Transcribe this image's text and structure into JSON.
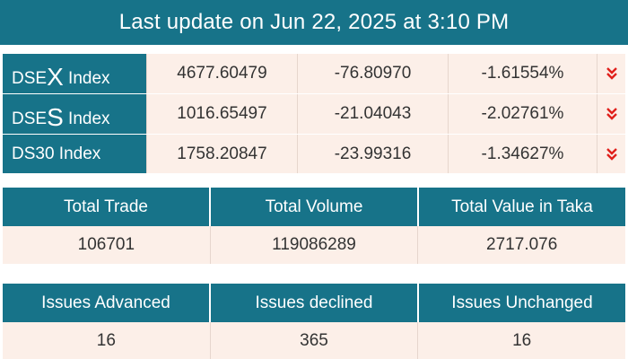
{
  "header": {
    "title": "Last update on Jun 22, 2025 at 3:10 PM"
  },
  "indices": [
    {
      "prefix": "DSE",
      "big": "X",
      "suffix": " Index",
      "value": "4677.60479",
      "change": "-76.80970",
      "percent": "-1.61554%",
      "trend_icon": "double-chevron-down-icon"
    },
    {
      "prefix": "DSE",
      "big": "S",
      "suffix": " Index",
      "value": "1016.65497",
      "change": "-21.04043",
      "percent": "-2.02761%",
      "trend_icon": "double-chevron-down-icon"
    },
    {
      "prefix": "DS30 Index",
      "big": "",
      "suffix": "",
      "value": "1758.20847",
      "change": "-23.99316",
      "percent": "-1.34627%",
      "trend_icon": "double-chevron-down-icon"
    }
  ],
  "trade_summary": {
    "headers": [
      "Total Trade",
      "Total Volume",
      "Total Value in Taka"
    ],
    "values": [
      "106701",
      "119086289",
      "2717.076"
    ]
  },
  "issues_summary": {
    "headers": [
      "Issues Advanced",
      "Issues declined",
      "Issues Unchanged"
    ],
    "values": [
      "16",
      "365",
      "16"
    ]
  },
  "colors": {
    "accent": "#177389",
    "row_bg": "#fcefe8",
    "down_arrow": "#e0201b"
  }
}
